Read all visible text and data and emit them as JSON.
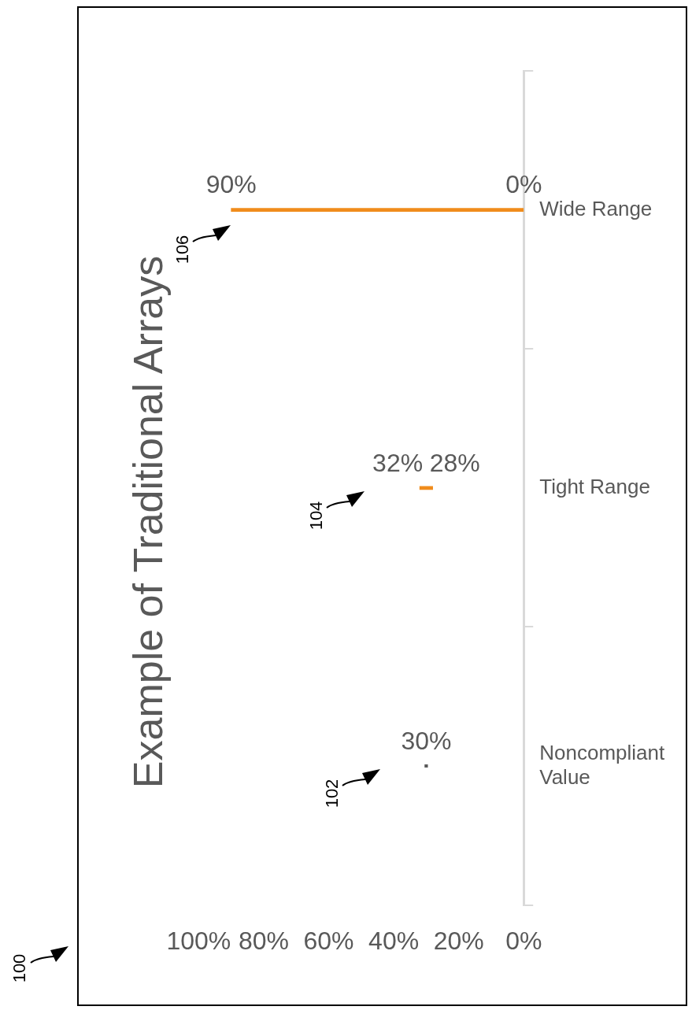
{
  "chart_data": {
    "type": "bar",
    "title": "Example of Traditional Arrays",
    "orientation": "horizontal",
    "categories": [
      "Wide Range",
      "Tight Range",
      "Noncompliant Value"
    ],
    "series": [
      {
        "type": "bar",
        "color": "#f08c1c",
        "values": [
          90,
          4,
          null
        ],
        "base": [
          0,
          28,
          null
        ]
      },
      {
        "type": "scatter",
        "color": "#595959",
        "values": [
          null,
          null,
          30
        ],
        "marker": "square"
      }
    ],
    "xlim": [
      100,
      0
    ],
    "xticks": [
      {
        "value": 100,
        "label": "100%"
      },
      {
        "value": 80,
        "label": "80%"
      },
      {
        "value": 60,
        "label": "60%"
      },
      {
        "value": 40,
        "label": "40%"
      },
      {
        "value": 20,
        "label": "20%"
      },
      {
        "value": 0,
        "label": "0%"
      }
    ],
    "annotations": [
      {
        "text": "90%",
        "x": 90,
        "y": "Wide Range"
      },
      {
        "text": "0%",
        "x": 0,
        "y": "Wide Range"
      },
      {
        "text": "32%",
        "x": 32,
        "y": "Tight Range"
      },
      {
        "text": "28%",
        "x": 28,
        "y": "Tight Range"
      },
      {
        "text": "30%",
        "x": 30,
        "y": "Noncompliant Value"
      },
      "100",
      "102",
      "104",
      "106"
    ]
  }
}
